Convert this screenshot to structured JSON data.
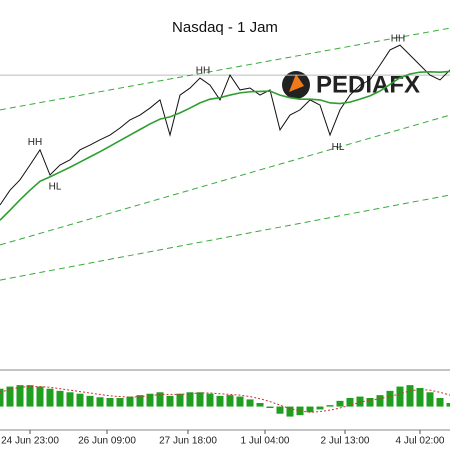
{
  "chart_data": [
    {
      "type": "line",
      "title": "Nasdaq - 1 Jam",
      "logo_text": "PEDIAFX",
      "xlim": [
        0,
        45
      ],
      "ylim": [
        0,
        100
      ],
      "series": [
        {
          "color": "#111111",
          "values": [
            44.6,
            48.6,
            51.4,
            55.4,
            59.5,
            52.7,
            55.4,
            56.8,
            59.5,
            60.8,
            62.2,
            63.5,
            65.4,
            67.6,
            68.9,
            70.8,
            73.0,
            63.5,
            74.3,
            76.2,
            78.9,
            77.0,
            73.0,
            79.7,
            75.7,
            76.2,
            74.3,
            75.7,
            64.9,
            68.9,
            70.3,
            73.0,
            71.6,
            63.5,
            70.3,
            74.3,
            77.0,
            78.4,
            82.4,
            86.5,
            87.8,
            85.1,
            82.4,
            79.7,
            78.4,
            81.1
          ]
        },
        {
          "color": "#2e9e2e",
          "values": [
            40.5,
            43.2,
            46.0,
            48.6,
            51.0,
            52.2,
            53.5,
            54.8,
            56.2,
            57.6,
            59.0,
            60.5,
            62.0,
            63.5,
            65.0,
            66.5,
            67.8,
            68.4,
            69.5,
            70.8,
            72.2,
            73.2,
            73.6,
            74.3,
            74.9,
            75.2,
            75.3,
            75.4,
            74.3,
            73.6,
            73.2,
            73.2,
            73.0,
            72.2,
            72.0,
            72.4,
            73.2,
            74.1,
            75.4,
            77.2,
            79.0,
            80.0,
            80.5,
            80.6,
            80.5,
            80.7
          ]
        }
      ],
      "trend_lines": [
        {
          "color": "#3aaa3a",
          "x": [
            0,
            45
          ],
          "values": [
            70.3,
            92.4
          ]
        },
        {
          "color": "#3aaa3a",
          "x": [
            0,
            45
          ],
          "values": [
            33.8,
            68.9
          ]
        },
        {
          "color": "#3aaa3a",
          "x": [
            0,
            45
          ],
          "values": [
            24.3,
            47.3
          ]
        }
      ],
      "hline": 79.7,
      "annotations": [
        {
          "text": "HH",
          "at": 3.5,
          "value": 61.5
        },
        {
          "text": "HL",
          "at": 5.5,
          "value": 49.5
        },
        {
          "text": "HH",
          "at": 20.3,
          "value": 80.8
        },
        {
          "text": "HL",
          "at": 33.8,
          "value": 60.2
        },
        {
          "text": "HH",
          "at": 39.8,
          "value": 89.5
        }
      ]
    },
    {
      "type": "bar",
      "xlim": [
        0,
        45
      ],
      "ylim": [
        -30,
        40
      ],
      "values": [
        25,
        28,
        30,
        30,
        28,
        25,
        22,
        20,
        18,
        15,
        13,
        12,
        12,
        14,
        16,
        18,
        20,
        15,
        18,
        20,
        20,
        18,
        15,
        16,
        14,
        10,
        5,
        -2,
        -10,
        -14,
        -12,
        -8,
        -4,
        2,
        8,
        12,
        14,
        12,
        16,
        22,
        28,
        30,
        26,
        20,
        12,
        5
      ],
      "color": "#1f9e1f",
      "negative_color": "#1f9e1f",
      "signal": {
        "color": "#d03030",
        "values": [
          20,
          24,
          27,
          28,
          28,
          27,
          25,
          23,
          21,
          19,
          17,
          15,
          14,
          13,
          14,
          15,
          17,
          17,
          17,
          18,
          19,
          19,
          18,
          17,
          16,
          14,
          11,
          7,
          2,
          -3,
          -6,
          -8,
          -7,
          -5,
          -2,
          2,
          6,
          9,
          11,
          14,
          18,
          22,
          24,
          23,
          20,
          16
        ]
      },
      "xticks": [
        {
          "value": 3,
          "label": "24 Jun 23:00"
        },
        {
          "value": 10.7,
          "label": "26 Jun 09:00"
        },
        {
          "value": 18.8,
          "label": "27 Jun 18:00"
        },
        {
          "value": 26.5,
          "label": "1 Jul 04:00"
        },
        {
          "value": 34.5,
          "label": "2 Jul 13:00"
        },
        {
          "value": 42,
          "label": "4 Jul 02:00"
        }
      ]
    }
  ]
}
